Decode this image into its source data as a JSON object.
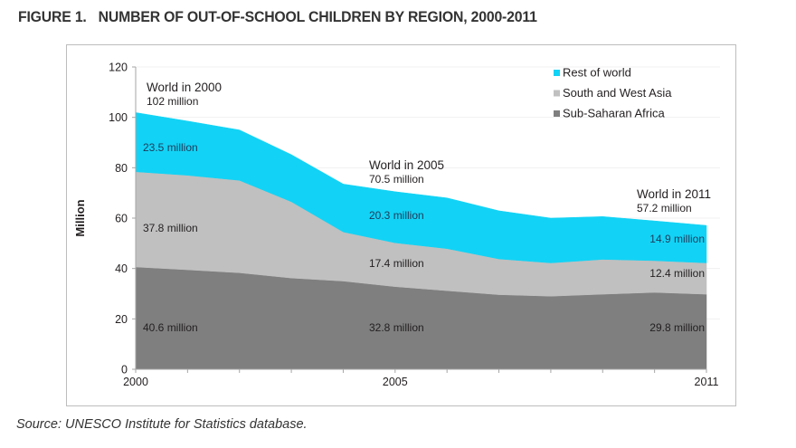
{
  "figure": {
    "label": "FIGURE 1.",
    "title": "NUMBER OF OUT-OF-SCHOOL CHILDREN BY REGION, 2000-2011"
  },
  "source": "Source: UNESCO Institute for Statistics database.",
  "colors": {
    "rest_of_world": "#12d3f5",
    "south_west_asia": "#c0c0c0",
    "sub_saharan_africa": "#7f7f7f",
    "axis": "#a6a6a6",
    "text": "#231f20",
    "label_on_cyan": "#1f3a5a"
  },
  "chart_data": {
    "type": "area",
    "stacked": true,
    "title": "NUMBER OF OUT-OF-SCHOOL CHILDREN BY REGION, 2000-2011",
    "xlabel": "",
    "ylabel": "Million",
    "x": [
      2000,
      2001,
      2002,
      2003,
      2004,
      2005,
      2006,
      2007,
      2008,
      2009,
      2010,
      2011
    ],
    "xticks_labeled": [
      "2000",
      "2005",
      "2011"
    ],
    "xlim": [
      2000,
      2011
    ],
    "ylim": [
      0,
      120
    ],
    "yticks": [
      "0",
      "20",
      "40",
      "60",
      "80",
      "100",
      "120"
    ],
    "grid": true,
    "legend_position": "top-right",
    "series": [
      {
        "name": "Sub-Saharan Africa",
        "key": "sub_saharan_africa",
        "values": [
          40.6,
          39.5,
          38.3,
          36.2,
          35.0,
          32.8,
          31.2,
          29.6,
          29.0,
          29.8,
          30.5,
          29.8
        ]
      },
      {
        "name": "South and West Asia",
        "key": "south_west_asia",
        "values": [
          37.8,
          37.5,
          36.7,
          30.3,
          19.5,
          17.4,
          16.7,
          14.2,
          13.2,
          13.8,
          12.6,
          12.4
        ]
      },
      {
        "name": "Rest of world",
        "key": "rest_of_world",
        "values": [
          23.5,
          21.5,
          20.0,
          18.7,
          19.0,
          20.3,
          20.1,
          19.1,
          17.8,
          17.0,
          15.8,
          14.9
        ]
      }
    ],
    "legend": [
      "Rest of world",
      "South and West Asia",
      "Sub-Saharan Africa"
    ],
    "annotations": [
      {
        "title": "World in 2000",
        "total": "102 million",
        "year": 2000
      },
      {
        "title": "World in 2005",
        "total": "70.5 million",
        "year": 2005
      },
      {
        "title": "World in 2011",
        "total": "57.2 million",
        "year": 2011
      }
    ],
    "data_labels": [
      {
        "year": 2000,
        "series": "rest_of_world",
        "text": "23.5 million"
      },
      {
        "year": 2000,
        "series": "south_west_asia",
        "text": "37.8 million"
      },
      {
        "year": 2000,
        "series": "sub_saharan_africa",
        "text": "40.6 million"
      },
      {
        "year": 2005,
        "series": "rest_of_world",
        "text": "20.3 million"
      },
      {
        "year": 2005,
        "series": "south_west_asia",
        "text": "17.4 million"
      },
      {
        "year": 2005,
        "series": "sub_saharan_africa",
        "text": "32.8 million"
      },
      {
        "year": 2011,
        "series": "rest_of_world",
        "text": "14.9 million"
      },
      {
        "year": 2011,
        "series": "south_west_asia",
        "text": "12.4 million"
      },
      {
        "year": 2011,
        "series": "sub_saharan_africa",
        "text": "29.8 million"
      }
    ]
  }
}
